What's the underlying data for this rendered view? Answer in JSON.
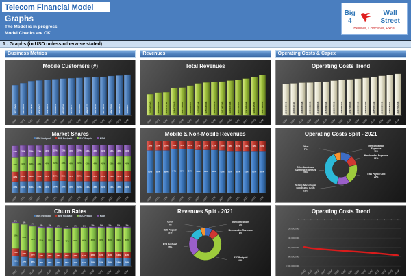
{
  "header": {
    "app_title": "Telecom Financial Model",
    "page_title": "Graphs",
    "status_line1": "The Model is in progress",
    "status_line2": "Model Checks are OK",
    "logo": {
      "text_left": "Big 4",
      "text_right": "Wall Street",
      "tagline": "Believe, Conceive, Excel"
    }
  },
  "section_title": "1 . Graphs (in USD unless otherwise stated)",
  "columns": [
    {
      "label": "Business Metrics"
    },
    {
      "label": "Revenues"
    },
    {
      "label": "Operating Costs & Capex"
    }
  ],
  "chart_data": [
    {
      "id": "mobile-customers",
      "type": "bar",
      "title": "Mobile Customers (#)",
      "categories": [
        "2020",
        "2021",
        "2022",
        "2023",
        "2024",
        "2025",
        "2026",
        "2027",
        "2028",
        "2029",
        "2030",
        "2031",
        "2032",
        "2033",
        "2034"
      ],
      "values": [
        3731040,
        3973023,
        4221575,
        4303347,
        4381184,
        4458184,
        4529334,
        4574797,
        4620088,
        4665137,
        4691376,
        4751190,
        4842268,
        4893264,
        5008647
      ],
      "colors": [
        "#82abde",
        "#4f81bd",
        "#2c5486"
      ],
      "label_color": "#ffffff",
      "ylim": [
        0,
        5200000
      ]
    },
    {
      "id": "total-revenues",
      "type": "bar",
      "title": "Total Revenues",
      "categories": [
        "2020",
        "2021",
        "2022",
        "2023",
        "2024",
        "2025",
        "2026",
        "2027",
        "2028",
        "2029",
        "2030",
        "2031",
        "2032",
        "2033",
        "2034"
      ],
      "values": [
        101000000,
        108653644,
        110427758,
        128471963,
        131711642,
        140830387,
        151526164,
        155653906,
        158097813,
        160190236,
        164967486,
        167795587,
        174309484,
        180811555,
        191758981
      ],
      "colors": [
        "#d3e77f",
        "#9fc13d",
        "#647f1e"
      ],
      "label_color": "#1a2400",
      "ylim": [
        0,
        200000000
      ]
    },
    {
      "id": "operating-costs-bars",
      "type": "bar",
      "title": "Operating Costs Trend",
      "categories": [
        "2020",
        "2021",
        "2022",
        "2023",
        "2024",
        "2025",
        "2026",
        "2027",
        "2028",
        "2029",
        "2030",
        "2031",
        "2032",
        "2033",
        "2034"
      ],
      "values": [
        201000000,
        204811156,
        208855088,
        209602282,
        212939843,
        215899084,
        221864906,
        225899327,
        229793846,
        233885023,
        238874399,
        245597102,
        251886096,
        256918301,
        264747203
      ],
      "colors": [
        "#fbfaf0",
        "#e8e5d2",
        "#b1ac8e"
      ],
      "label_color": "#2a2a2a",
      "ylim": [
        0,
        270000000
      ]
    },
    {
      "id": "market-shares",
      "type": "stacked",
      "title": "Market Shares",
      "show_legend": true,
      "categories": [
        "2020",
        "2021",
        "2022",
        "2023",
        "2024",
        "2025",
        "2026",
        "2027",
        "2028",
        "2029",
        "2030",
        "2031",
        "2032",
        "2033",
        "2034"
      ],
      "series": [
        {
          "name": "B2C Postpaid",
          "colors": [
            "#6f9fd8",
            "#4a7ebb",
            "#2d5480"
          ],
          "label_color": "#ffffff",
          "values": [
            33,
            34,
            34,
            34,
            34,
            35,
            35,
            34,
            34,
            34,
            34,
            34,
            34,
            34,
            34
          ]
        },
        {
          "name": "B2B Postpaid",
          "colors": [
            "#e0625c",
            "#c0392b",
            "#7e1f1a"
          ],
          "label_color": "#ffffff",
          "values": [
            29,
            30,
            30,
            30,
            31,
            31,
            31,
            31,
            32,
            31,
            31,
            31,
            31,
            31,
            31
          ]
        },
        {
          "name": "B2C Prepaid",
          "colors": [
            "#c0e660",
            "#92d050",
            "#5c8c2e"
          ],
          "label_color": "#243a0c",
          "values": [
            43,
            43,
            43,
            43,
            43,
            43,
            43,
            43,
            43,
            43,
            43,
            43,
            43,
            43,
            43
          ]
        },
        {
          "name": "M2M",
          "colors": [
            "#a97fd4",
            "#8257ad",
            "#543471"
          ],
          "label_color": "#ffffff",
          "values": [
            34,
            33,
            33,
            33,
            33,
            33,
            33,
            33,
            33,
            33,
            33,
            33,
            33,
            33,
            33
          ]
        }
      ]
    },
    {
      "id": "mobile-nonmobile-revenues",
      "type": "stacked",
      "title": "Mobile & Non-Mobile Revenues",
      "show_legend": false,
      "categories": [
        "2020",
        "2021",
        "2022",
        "2023",
        "2024",
        "2025",
        "2026",
        "2027",
        "2028",
        "2029",
        "2030",
        "2031",
        "2032",
        "2033",
        "2034"
      ],
      "series": [
        {
          "name": "Mobile",
          "colors": [
            "#5e96d6",
            "#3f7ac2",
            "#24507e"
          ],
          "label_color": "#ffffff",
          "values": [
            82,
            82,
            82,
            84,
            84,
            84,
            83,
            83,
            83,
            82,
            81,
            81,
            81,
            81,
            81
          ]
        },
        {
          "name": "Non-Mobile",
          "colors": [
            "#e0625c",
            "#c0392b",
            "#7e1f1a"
          ],
          "label_color": "#ffffff",
          "values": [
            18,
            18,
            18,
            16,
            16,
            16,
            17,
            17,
            17,
            18,
            19,
            19,
            19,
            19,
            19
          ]
        }
      ]
    },
    {
      "id": "operating-costs-split-2021",
      "type": "donut",
      "title": "Operating Costs Split - 2021",
      "slices": [
        {
          "label": "Interconnection Expenses",
          "value": 11,
          "color": "#3d6cc4"
        },
        {
          "label": "Merchandise Expenses",
          "value": 10,
          "color": "#cf3732"
        },
        {
          "label": "Total Payroll Cost",
          "value": 20,
          "color": "#9dcb3c"
        },
        {
          "label": "Selling, Marketing & Distribution Costs",
          "value": 13,
          "color": "#9a5fc9"
        },
        {
          "label": "Other Admin and Overhead Expenses",
          "value": 39,
          "color": "#2cb9d8"
        },
        {
          "label": "Other",
          "value": 7,
          "color": "#f59331"
        }
      ]
    },
    {
      "id": "churn-rates",
      "type": "stacked",
      "title": "Churn Rates",
      "show_legend": true,
      "categories": [
        "2021",
        "2022",
        "2023",
        "2024",
        "2025",
        "2026",
        "2027",
        "2028",
        "2029",
        "2030",
        "2031",
        "2032",
        "2033",
        "2034"
      ],
      "series": [
        {
          "name": "B2C Postpaid",
          "colors": [
            "#6f9fd8",
            "#4a7ebb",
            "#2d5480"
          ],
          "label_color": "#ffffff",
          "values": [
            21,
            19,
            17,
            15,
            15,
            15,
            15,
            15,
            15,
            16,
            16,
            16,
            16,
            16
          ]
        },
        {
          "name": "B2B Postpaid",
          "colors": [
            "#e0625c",
            "#c0392b",
            "#7e1f1a"
          ],
          "label_color": "#ffffff",
          "values": [
            15,
            13,
            12,
            12,
            12,
            12,
            12,
            12,
            13,
            13,
            13,
            13,
            13,
            13
          ]
        },
        {
          "name": "B2C Prepaid",
          "colors": [
            "#c0e660",
            "#92d050",
            "#5c8c2e"
          ],
          "label_color": "#243a0c",
          "values": [
            52,
            53,
            52,
            51,
            51,
            50,
            49,
            50,
            49,
            49,
            49,
            49,
            49,
            49
          ]
        },
        {
          "name": "M2M",
          "colors": [
            "#a97fd4",
            "#8257ad",
            "#543471"
          ],
          "label_color": "#e8e8e8",
          "values": [
            1,
            1,
            2,
            2,
            2,
            2,
            2,
            2,
            2,
            2,
            2,
            2,
            2,
            2
          ]
        }
      ]
    },
    {
      "id": "revenues-split-2021",
      "type": "donut",
      "title": "Revenues Split - 2021",
      "slices": [
        {
          "label": "Interconnections",
          "value": 7,
          "color": "#3d6cc4"
        },
        {
          "label": "Merchandise Revenues",
          "value": 8,
          "color": "#cf3732"
        },
        {
          "label": "B2C Postpaid",
          "value": 48,
          "color": "#9dcb3c"
        },
        {
          "label": "B2B Postpaid",
          "value": 20,
          "color": "#9a5fc9"
        },
        {
          "label": "B2C Prepaid",
          "value": 12,
          "color": "#2cb9d8"
        },
        {
          "label": "Other",
          "value": 5,
          "color": "#f59331"
        }
      ]
    },
    {
      "id": "operating-costs-line",
      "type": "line",
      "title": "Operating Costs Trend",
      "categories": [
        "2020",
        "2021",
        "2022",
        "2023",
        "2024",
        "2025",
        "2026",
        "2027",
        "2028",
        "2029",
        "2030",
        "2031",
        "2032",
        "2033",
        "2034"
      ],
      "values": [
        -59000000,
        -61500000,
        -63000000,
        -64200000,
        -65300000,
        -66400000,
        -67500000,
        -68400000,
        -69300000,
        -70400000,
        -71600000,
        -72800000,
        -74100000,
        -75500000,
        -77000000
      ],
      "ylim": [
        0,
        -100000000
      ],
      "yticks": [
        {
          "value": 0,
          "label": "0"
        },
        {
          "value": -20000000,
          "label": "(20,000,000)"
        },
        {
          "value": -40000000,
          "label": "(40,000,000)"
        },
        {
          "value": -60000000,
          "label": "(60,000,000)"
        },
        {
          "value": -80000000,
          "label": "(80,000,000)"
        },
        {
          "value": -100000000,
          "label": "(100,000,000)"
        }
      ],
      "line_color": "#d91c1c"
    }
  ]
}
